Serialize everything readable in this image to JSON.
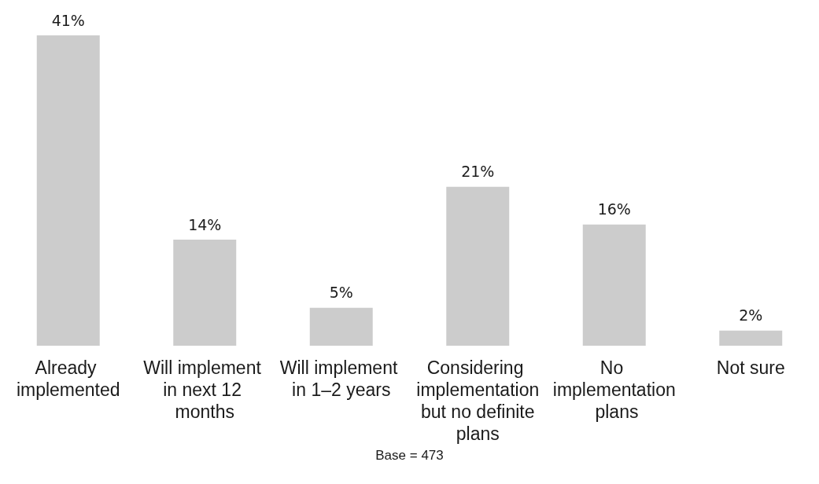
{
  "chart_data": {
    "type": "bar",
    "categories": [
      "Already implemented",
      "Will implement in next 12 months",
      "Will implement in 1–2 years",
      "Considering implementation but no definite plans",
      "No implementation plans",
      "Not sure"
    ],
    "values": [
      41,
      14,
      5,
      21,
      16,
      2
    ],
    "color": "#cccccc",
    "value_labels": [
      "41%",
      "14%",
      "5%",
      "21%",
      "16%",
      "2%"
    ],
    "annotations": [
      "Base = 473"
    ]
  }
}
